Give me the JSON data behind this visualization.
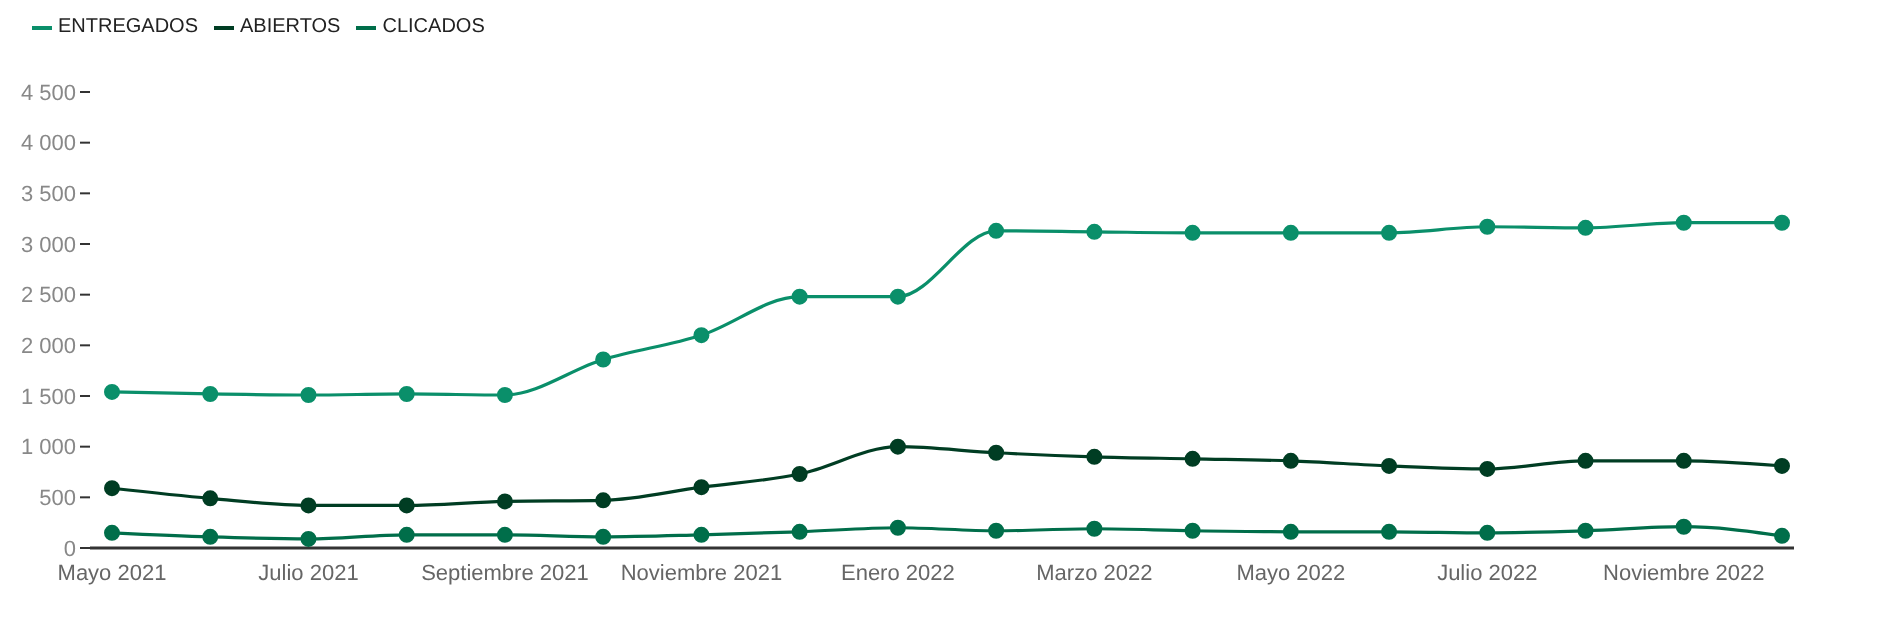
{
  "chart_data": {
    "type": "line",
    "categories": [
      "Mayo 2021",
      null,
      "Julio 2021",
      null,
      "Septiembre 2021",
      null,
      "Noviembre 2021",
      null,
      "Enero 2022",
      null,
      "Marzo 2022",
      null,
      "Mayo 2022",
      null,
      "Julio 2022",
      null,
      "Noviembre 2022",
      null
    ],
    "series": [
      {
        "name": "ENTREGADOS",
        "color": "#0a8f6a",
        "values": [
          1540,
          1520,
          1510,
          1520,
          1510,
          1860,
          2100,
          2480,
          2480,
          3130,
          3120,
          3110,
          3110,
          3110,
          3170,
          3160,
          3210,
          3210
        ]
      },
      {
        "name": "ABIERTOS",
        "color": "#003d23",
        "values": [
          590,
          490,
          420,
          420,
          460,
          470,
          600,
          730,
          1000,
          940,
          900,
          880,
          860,
          810,
          780,
          860,
          860,
          810
        ]
      },
      {
        "name": "CLICADOS",
        "color": "#006e4a",
        "values": [
          150,
          110,
          90,
          130,
          130,
          110,
          130,
          160,
          200,
          170,
          190,
          170,
          160,
          160,
          150,
          170,
          210,
          120
        ]
      }
    ],
    "ylim": [
      0,
      4500
    ],
    "yticks": [
      0,
      500,
      {
        "value": 1000,
        "label": "1 000"
      },
      {
        "value": 1500,
        "label": "1 500"
      },
      {
        "value": 2000,
        "label": "2 000"
      },
      {
        "value": 2500,
        "label": "2 500"
      },
      {
        "value": 3000,
        "label": "3 000"
      },
      {
        "value": 3500,
        "label": "3 500"
      },
      {
        "value": 4000,
        "label": "4 000"
      },
      {
        "value": 4500,
        "label": "4 500"
      }
    ],
    "grid": false,
    "legend": "top left",
    "marker": "circle",
    "line_style": "solid"
  }
}
